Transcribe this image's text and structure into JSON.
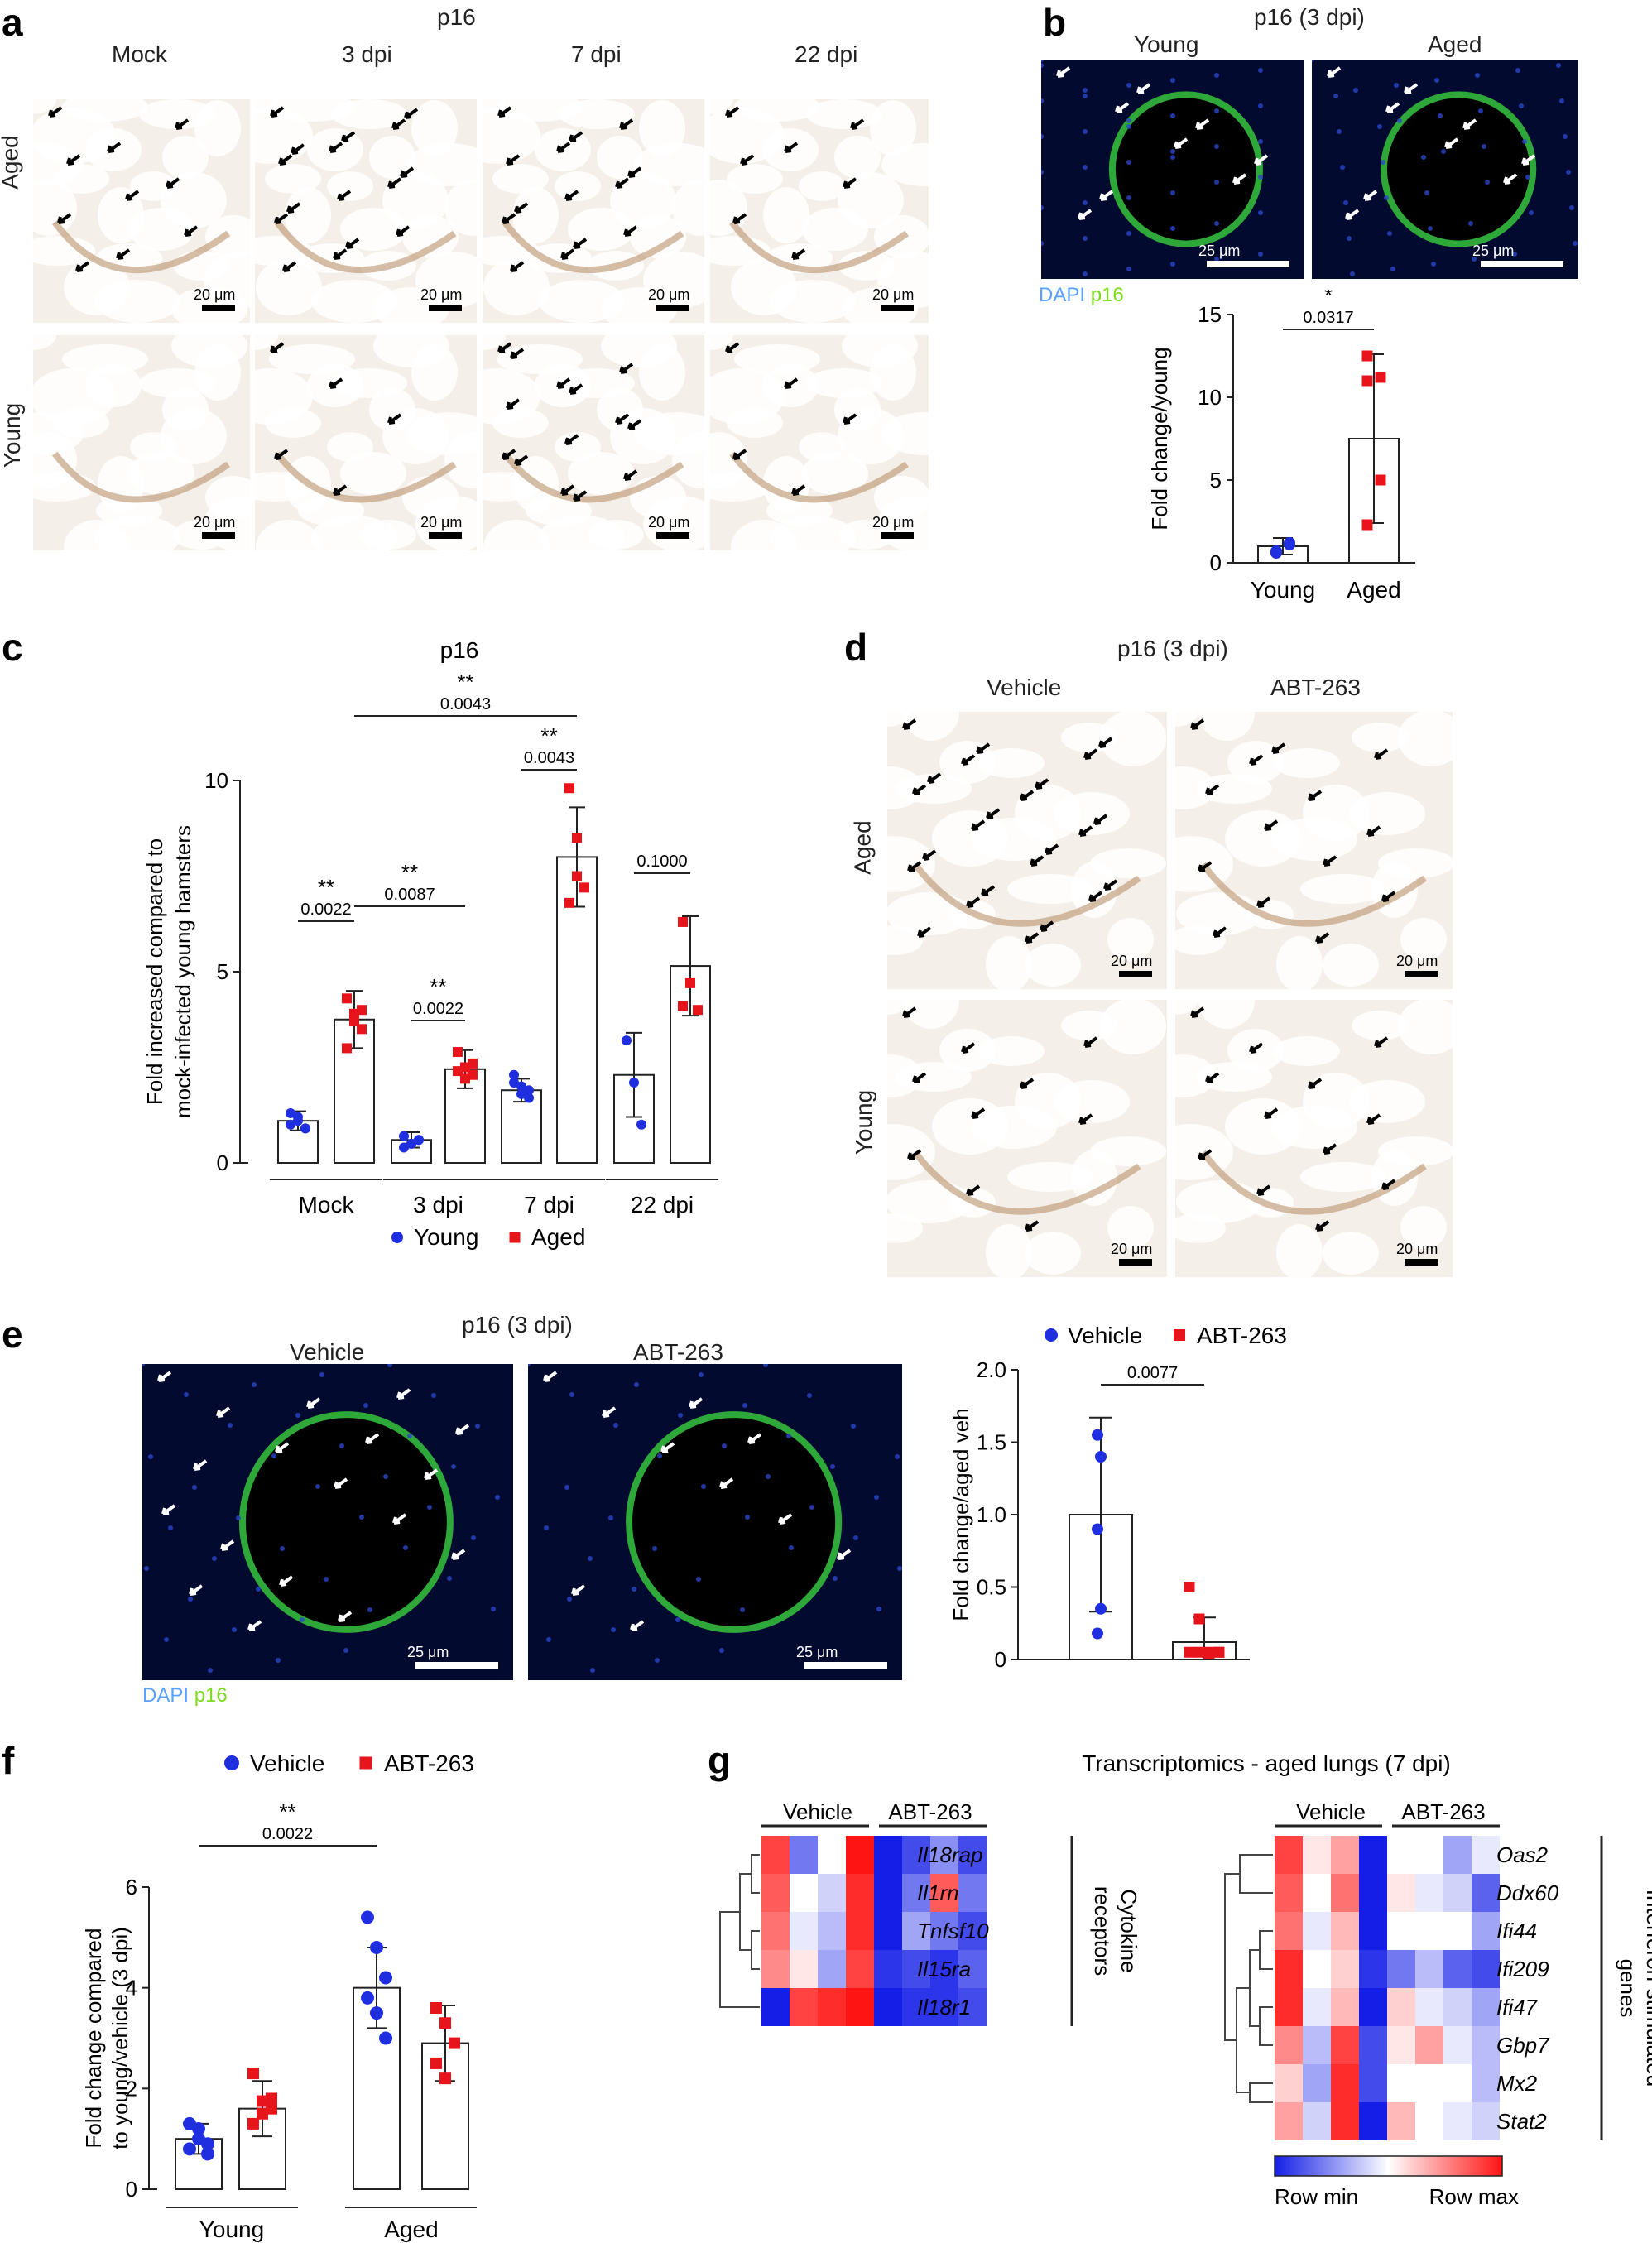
{
  "panels": {
    "a": "a",
    "b": "b",
    "c": "c",
    "d": "d",
    "e": "e",
    "f": "f",
    "g": "g"
  },
  "panel_a": {
    "title": "p16",
    "cols": [
      "Mock",
      "3 dpi",
      "7 dpi",
      "22 dpi"
    ],
    "rows": [
      "Aged",
      "Young"
    ],
    "scale": "20 μm"
  },
  "panel_b": {
    "title": "p16 (3 dpi)",
    "cols": [
      "Young",
      "Aged"
    ],
    "scale": "25 μm",
    "dapi": "DAPI",
    "p16": "p16"
  },
  "panel_d": {
    "title": "p16 (3 dpi)",
    "cols": [
      "Vehicle",
      "ABT-263"
    ],
    "rows": [
      "Aged",
      "Young"
    ],
    "scale": "20 μm"
  },
  "panel_e": {
    "title": "p16 (3 dpi)",
    "cols": [
      "Vehicle",
      "ABT-263"
    ],
    "scale": "25 μm",
    "dapi": "DAPI",
    "p16": "p16"
  },
  "colors": {
    "young": "#1f2fe0",
    "aged": "#e8141c",
    "vehicle": "#1f2fe0",
    "abt": "#e8141c"
  },
  "chart_data": [
    {
      "id": "b",
      "type": "bar",
      "categories": [
        "Young",
        "Aged"
      ],
      "values": [
        1.0,
        7.5
      ],
      "error": [
        0.5,
        5.1
      ],
      "points": [
        [
          0.7,
          1.2,
          0.6,
          1.1
        ],
        [
          12.5,
          11.2,
          11.0,
          5.0,
          2.3
        ]
      ],
      "ylabel": "Fold change/young",
      "ylim": [
        0,
        15
      ],
      "yticks": [
        0,
        5,
        10,
        15
      ],
      "sig": [
        {
          "a": 0,
          "b": 1,
          "star": "*",
          "p": "0.0317"
        }
      ]
    },
    {
      "id": "c",
      "type": "bar",
      "title": "p16",
      "categories": [
        "Mock",
        "3 dpi",
        "7 dpi",
        "22 dpi"
      ],
      "ylabel": [
        "Fold increased compared to",
        "mock-infected young hamsters"
      ],
      "ylim": [
        0,
        10
      ],
      "yticks": [
        0,
        5,
        10
      ],
      "legend": [
        "Young",
        "Aged"
      ],
      "series": [
        {
          "name": "Young",
          "values": [
            1.1,
            0.6,
            1.9,
            2.3
          ],
          "error": [
            0.25,
            0.2,
            0.3,
            1.1
          ],
          "points": [
            [
              1.3,
              1.1,
              0.9,
              1.0,
              1.2,
              0.9
            ],
            [
              0.7,
              0.5,
              0.6,
              0.4,
              0.5,
              0.6
            ],
            [
              2.3,
              2.0,
              1.7,
              2.1,
              1.8,
              1.9
            ],
            [
              3.2,
              2.1,
              1.0
            ]
          ]
        },
        {
          "name": "Aged",
          "values": [
            3.75,
            2.45,
            8.0,
            5.15
          ],
          "error": [
            0.75,
            0.5,
            1.3,
            1.3
          ],
          "points": [
            [
              4.3,
              3.9,
              3.5,
              3.0,
              3.7,
              4.0
            ],
            [
              2.9,
              2.5,
              2.3,
              2.4,
              2.2,
              2.6
            ],
            [
              9.8,
              8.5,
              7.2,
              6.8,
              7.5
            ],
            [
              6.3,
              4.7,
              4.0,
              4.1
            ]
          ]
        }
      ],
      "sig": [
        {
          "label": "**",
          "p": "0.0022",
          "g": "Mock"
        },
        {
          "label": "**",
          "p": "0.0022",
          "g": "3 dpi"
        },
        {
          "label": "**",
          "p": "0.0043",
          "g": "7 dpi"
        },
        {
          "label": "",
          "p": "0.1000",
          "g": "22 dpi"
        },
        {
          "label": "**",
          "p": "0.0087",
          "g": "Mock-3dpi"
        },
        {
          "label": "**",
          "p": "0.0043",
          "g": "Mock-7dpi"
        }
      ]
    },
    {
      "id": "e",
      "type": "bar",
      "categories": [
        "Vehicle",
        "ABT-263"
      ],
      "values": [
        1.0,
        0.12
      ],
      "error": [
        0.67,
        0.17
      ],
      "points": [
        [
          1.55,
          1.4,
          0.9,
          0.35,
          0.18
        ],
        [
          0.5,
          0.28,
          0.05,
          0.05,
          0.05,
          0.05,
          0.04,
          0.05
        ]
      ],
      "ylabel": "Fold change/aged veh",
      "ylim": [
        0,
        2.0
      ],
      "yticks": [
        "0",
        "0.5",
        "1.0",
        "1.5",
        "2.0"
      ],
      "legend": [
        "Vehicle",
        "ABT-263"
      ],
      "sig": [
        {
          "a": 0,
          "b": 1,
          "star": "",
          "p": "0.0077"
        }
      ]
    },
    {
      "id": "f",
      "type": "bar",
      "categories": [
        "Young Vehicle",
        "Young ABT-263",
        "Aged Vehicle",
        "Aged ABT-263"
      ],
      "values": [
        1.0,
        1.6,
        4.0,
        2.9
      ],
      "error": [
        0.3,
        0.55,
        0.8,
        0.75
      ],
      "points": [
        [
          1.3,
          1.2,
          0.9,
          0.8,
          1.0,
          0.7
        ],
        [
          2.3,
          1.75,
          1.6,
          1.3,
          1.5,
          1.8
        ],
        [
          5.4,
          4.8,
          4.2,
          3.8,
          3.5,
          3.0
        ],
        [
          3.6,
          3.3,
          2.9,
          2.5,
          2.2
        ]
      ],
      "ylabel": [
        "Fold change compared",
        "to young/vehicle (3 dpi)"
      ],
      "ylim": [
        0,
        6
      ],
      "yticks": [
        0,
        2,
        4,
        6
      ],
      "groups": [
        "Young",
        "Aged"
      ],
      "legend": [
        "Vehicle",
        "ABT-263"
      ],
      "sig": [
        {
          "a": 0,
          "b": 2,
          "star": "**",
          "p": "0.0022"
        }
      ]
    },
    {
      "id": "g1",
      "type": "heatmap",
      "title": "Transcriptomics - aged lungs (7 dpi)",
      "col_groups": [
        "Vehicle",
        "ABT-263"
      ],
      "rows": [
        "Il18rap",
        "Il1rn",
        "Tnfsf10",
        "Il15ra",
        "Il18r1"
      ],
      "row_group": [
        "Cytokine",
        "receptors"
      ],
      "values": [
        [
          0.9,
          0.2,
          0.5,
          1.0,
          0.0,
          0.1,
          0.25,
          0.1
        ],
        [
          0.85,
          0.5,
          0.4,
          0.95,
          0.0,
          0.2,
          0.85,
          0.2
        ],
        [
          0.8,
          0.45,
          0.35,
          0.95,
          0.0,
          0.3,
          0.2,
          0.1
        ],
        [
          0.75,
          0.55,
          0.3,
          0.9,
          0.05,
          0.1,
          0.05,
          0.15
        ],
        [
          0.0,
          0.9,
          0.95,
          1.0,
          0.0,
          0.05,
          0.05,
          0.1
        ]
      ]
    },
    {
      "id": "g2",
      "type": "heatmap",
      "col_groups": [
        "Vehicle",
        "ABT-263"
      ],
      "rows": [
        "Oas2",
        "Ddx60",
        "Ifi44",
        "Ifi209",
        "Ifi47",
        "Gbp7",
        "Mx2",
        "Stat2"
      ],
      "row_group": [
        "Interferon-stimulated",
        "genes"
      ],
      "values": [
        [
          0.9,
          0.55,
          0.7,
          0.0,
          0.5,
          0.5,
          0.3,
          0.45
        ],
        [
          0.85,
          0.5,
          0.8,
          0.0,
          0.55,
          0.45,
          0.4,
          0.15
        ],
        [
          0.8,
          0.45,
          0.65,
          0.0,
          0.5,
          0.5,
          0.5,
          0.3
        ],
        [
          0.95,
          0.5,
          0.6,
          0.05,
          0.2,
          0.35,
          0.15,
          0.1
        ],
        [
          0.95,
          0.45,
          0.65,
          0.0,
          0.6,
          0.45,
          0.4,
          0.3
        ],
        [
          0.75,
          0.35,
          0.9,
          0.1,
          0.55,
          0.7,
          0.45,
          0.35
        ],
        [
          0.6,
          0.3,
          0.95,
          0.1,
          0.5,
          0.5,
          0.5,
          0.35
        ],
        [
          0.7,
          0.4,
          0.95,
          0.0,
          0.65,
          0.5,
          0.45,
          0.4
        ]
      ],
      "legend": [
        "Row min",
        "Row max"
      ]
    }
  ]
}
